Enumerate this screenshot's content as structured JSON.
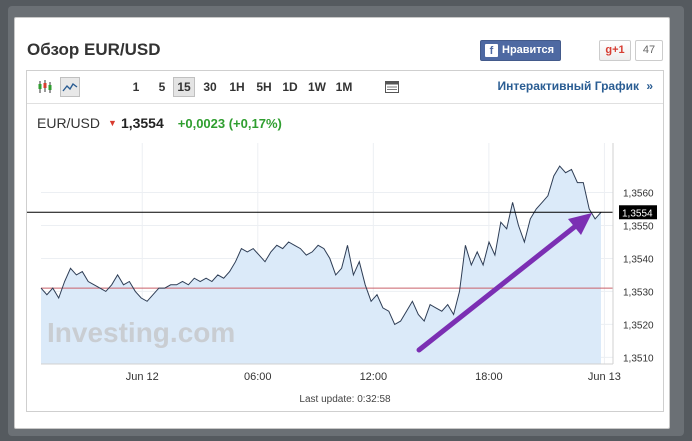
{
  "widget": {
    "title": "Обзор EUR/USD",
    "facebook_label": "Нравится",
    "facebook_glyph": "f",
    "gplus_label": "g+1",
    "gplus_count": "47"
  },
  "toolbar": {
    "chart_type_icons": [
      "candlestick-icon",
      "line-chart-icon"
    ],
    "timeframes": [
      "1",
      "5",
      "15",
      "30",
      "1H",
      "5H",
      "1D",
      "1W",
      "1M"
    ],
    "active_timeframe": "15",
    "table_icon": "table-icon",
    "interactive_label": "Интерактивный График",
    "interactive_chevron": "»"
  },
  "quote": {
    "symbol": "EUR/USD",
    "direction": "down",
    "price": "1,3554",
    "change": "+0,0023 (+0,17%)"
  },
  "colors": {
    "area_fill": "#dbeaf9",
    "line": "#2e3d55",
    "arrow": "#7b2fb3",
    "current_line": "#000000",
    "prev_close_line": "#c9606a",
    "price_label_bg": "#000000",
    "facebook": "#4e69a2",
    "positive": "#2f9e2f",
    "negative": "#d83b2f"
  },
  "chart_data": {
    "type": "area",
    "watermark": "Investing.com",
    "x_tick_labels": [
      "Jun 12",
      "06:00",
      "12:00",
      "18:00",
      "Jun 13"
    ],
    "y_tick_labels": [
      "1,3560",
      "1,3550",
      "1,3540",
      "1,3530",
      "1,3520",
      "1,3510"
    ],
    "ylim": [
      1.3508,
      1.3575
    ],
    "current_price_label": "1,3554",
    "current_price": 1.3554,
    "previous_close": 1.3531,
    "grid": true,
    "series": [
      {
        "values": [
          1.3531,
          1.3529,
          1.3531,
          1.3528,
          1.3533,
          1.3537,
          1.3535,
          1.3536,
          1.3533,
          1.3532,
          1.3531,
          1.353,
          1.3532,
          1.3535,
          1.3532,
          1.3533,
          1.353,
          1.3528,
          1.3527,
          1.3529,
          1.3531,
          1.3531,
          1.3532,
          1.3532,
          1.3533,
          1.3532,
          1.3534,
          1.3533,
          1.3534,
          1.3533,
          1.3535,
          1.3534,
          1.3536,
          1.3539,
          1.3543,
          1.3542,
          1.3543,
          1.3541,
          1.3539,
          1.3542,
          1.3544,
          1.3543,
          1.3545,
          1.3544,
          1.3543,
          1.3541,
          1.3542,
          1.3544,
          1.3543,
          1.354,
          1.3535,
          1.3537,
          1.3544,
          1.3535,
          1.3539,
          1.3532,
          1.3527,
          1.3529,
          1.3525,
          1.3524,
          1.352,
          1.3521,
          1.3524,
          1.3527,
          1.3523,
          1.3521,
          1.3526,
          1.3525,
          1.3524,
          1.3526,
          1.3523,
          1.353,
          1.3544,
          1.3538,
          1.3542,
          1.3538,
          1.3545,
          1.3541,
          1.3551,
          1.3549,
          1.3557,
          1.355,
          1.3545,
          1.3552,
          1.3555,
          1.3557,
          1.3559,
          1.3565,
          1.3568,
          1.3566,
          1.3567,
          1.3563,
          1.3563,
          1.3555,
          1.3552,
          1.3554
        ]
      }
    ],
    "annotation": "purple arrow pointing up-right"
  },
  "footer": {
    "last_update": "Last update: 0:32:58"
  }
}
